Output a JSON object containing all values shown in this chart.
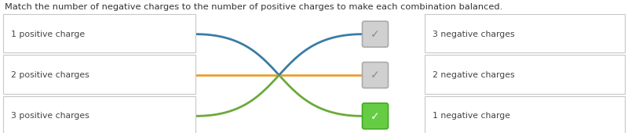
{
  "title": "Match the number of negative charges to the number of positive charges to make each combination balanced.",
  "left_labels": [
    "1 positive charge",
    "2 positive charges",
    "3 positive charges"
  ],
  "right_labels": [
    "3 negative charges",
    "2 negative charges",
    "1 negative charge"
  ],
  "check_colors": [
    "#d0d0d0",
    "#d0d0d0",
    "#66cc44"
  ],
  "check_border_colors": [
    "#aaaaaa",
    "#aaaaaa",
    "#44aa22"
  ],
  "check_mark_colors": [
    "#888888",
    "#888888",
    "#ffffff"
  ],
  "line_colors_left": [
    "#3a7ca5",
    "#e8a030",
    "#6aaa3a"
  ],
  "line_colors_right": [
    "#6aaa3a",
    "#e8a030",
    "#3a7ca5"
  ],
  "connections": [
    2,
    1,
    0
  ],
  "bg_color": "#ffffff",
  "box_edge_color": "#c8c8c8",
  "title_color": "#333333",
  "label_color": "#444444",
  "title_fontsize": 8.2,
  "label_fontsize": 7.8
}
